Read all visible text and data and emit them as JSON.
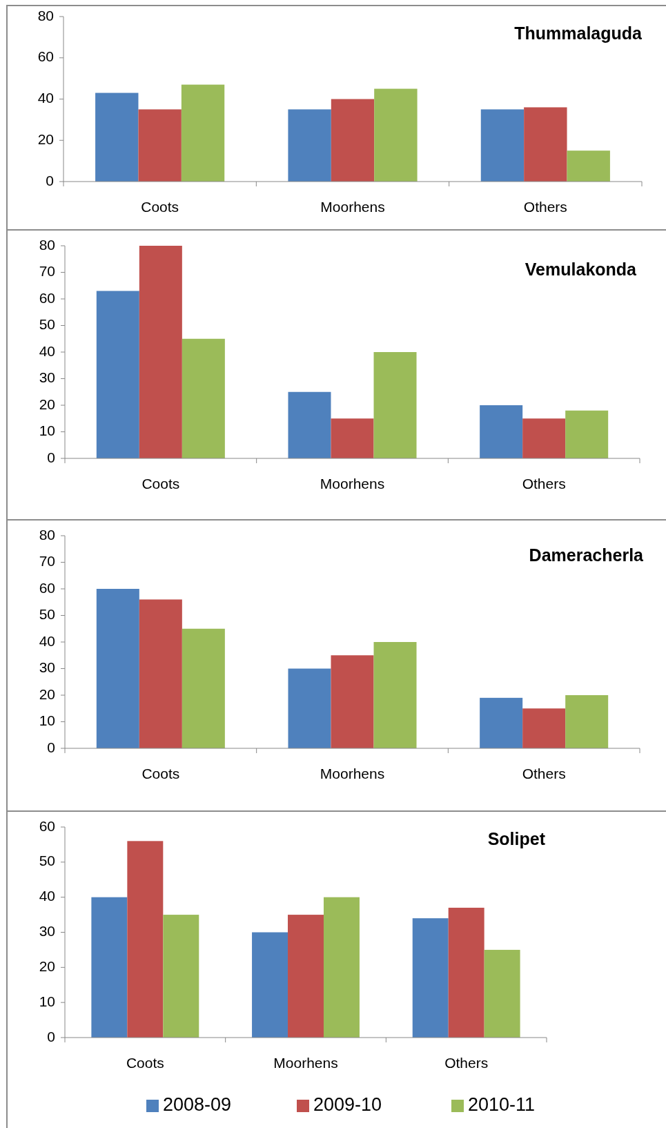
{
  "chart_data": [
    {
      "type": "bar",
      "title": "Thummalaguda",
      "categories": [
        "Coots",
        "Moorhens",
        "Others"
      ],
      "ylim": [
        0,
        80
      ],
      "yticks": [
        0,
        20,
        40,
        60,
        80
      ],
      "legend": false,
      "series": [
        {
          "color": "#4f81bd",
          "values": [
            43,
            35,
            35
          ]
        },
        {
          "color": "#c0504d",
          "values": [
            35,
            40,
            36
          ]
        },
        {
          "color": "#9bbb59",
          "values": [
            47,
            45,
            15
          ]
        }
      ]
    },
    {
      "type": "bar",
      "title": "Vemulakonda",
      "categories": [
        "Coots",
        "Moorhens",
        "Others"
      ],
      "ylim": [
        0,
        80
      ],
      "yticks": [
        0,
        10,
        20,
        30,
        40,
        50,
        60,
        70,
        80
      ],
      "legend": false,
      "series": [
        {
          "color": "#4f81bd",
          "values": [
            63,
            25,
            20
          ]
        },
        {
          "color": "#c0504d",
          "values": [
            80,
            15,
            15
          ]
        },
        {
          "color": "#9bbb59",
          "values": [
            45,
            40,
            18
          ]
        }
      ]
    },
    {
      "type": "bar",
      "title": "Dameracherla",
      "categories": [
        "Coots",
        "Moorhens",
        "Others"
      ],
      "ylim": [
        0,
        80
      ],
      "yticks": [
        0,
        10,
        20,
        30,
        40,
        50,
        60,
        70,
        80
      ],
      "legend": false,
      "series": [
        {
          "color": "#4f81bd",
          "values": [
            60,
            30,
            19
          ]
        },
        {
          "color": "#c0504d",
          "values": [
            56,
            35,
            15
          ]
        },
        {
          "color": "#9bbb59",
          "values": [
            45,
            40,
            20
          ]
        }
      ]
    },
    {
      "type": "bar",
      "title": "Solipet",
      "categories": [
        "Coots",
        "Moorhens",
        "Others"
      ],
      "ylim": [
        0,
        60
      ],
      "yticks": [
        0,
        10,
        20,
        30,
        40,
        50,
        60
      ],
      "legend": "bottom",
      "series": [
        {
          "name": "2008-09",
          "color": "#4f81bd",
          "values": [
            40,
            30,
            34
          ]
        },
        {
          "name": "2009-10",
          "color": "#c0504d",
          "values": [
            56,
            35,
            37
          ]
        },
        {
          "name": "2010-11",
          "color": "#9bbb59",
          "values": [
            35,
            40,
            25
          ]
        }
      ]
    }
  ]
}
